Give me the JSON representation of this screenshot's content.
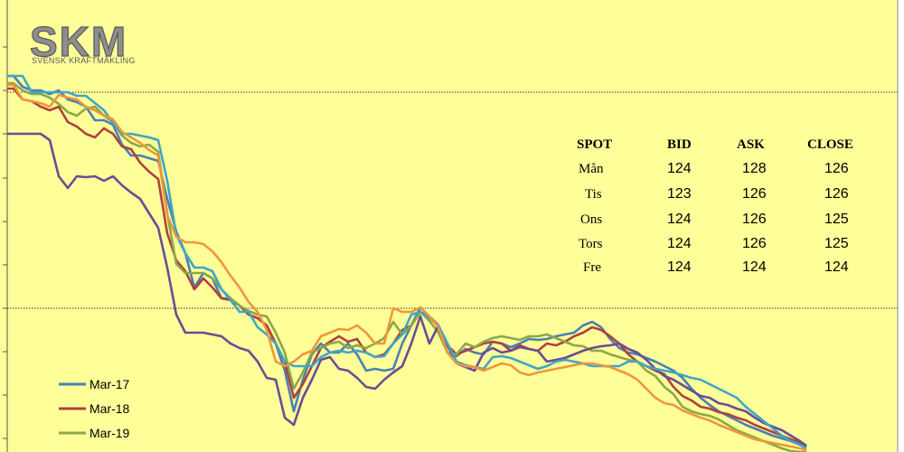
{
  "logo": {
    "name": "SKM",
    "tagline": "SVENSK KRAFTMÄKLING"
  },
  "colors": {
    "background": "#ffff99",
    "Mar-17": "#4a7fb5",
    "Mar-18": "#b0413e",
    "Mar-19": "#8aa84a",
    "series4": "#6b4c96",
    "series5": "#3ea6c6",
    "series6": "#f0963c"
  },
  "spot_table": {
    "headers": [
      "SPOT",
      "BID",
      "ASK",
      "CLOSE"
    ],
    "rows": [
      [
        "Mån",
        "124",
        "128",
        "126"
      ],
      [
        "Tis",
        "123",
        "126",
        "126"
      ],
      [
        "Ons",
        "124",
        "126",
        "125"
      ],
      [
        "Tors",
        "124",
        "126",
        "125"
      ],
      [
        "Fre",
        "124",
        "124",
        "124"
      ]
    ]
  },
  "chart_data": {
    "type": "line",
    "title": "",
    "xlabel": "",
    "ylabel": "",
    "grid": false,
    "legend_position": "bottom-left",
    "reference_lines": [
      102,
      341
    ],
    "x": [
      0,
      7,
      17,
      27,
      37,
      47,
      57,
      67,
      77,
      87,
      97,
      107,
      117,
      127,
      137,
      147,
      157,
      167,
      177,
      187,
      197,
      207,
      217,
      227,
      237,
      247,
      257,
      267,
      277,
      287,
      297,
      307,
      317,
      327,
      337,
      347,
      357,
      367,
      377,
      387,
      397,
      407,
      417,
      427,
      437,
      447,
      457,
      467,
      477,
      487,
      497,
      507,
      517,
      527,
      537,
      547,
      557,
      567,
      577,
      587,
      597,
      607,
      617,
      627,
      637,
      647,
      657,
      667,
      677,
      687,
      697,
      707,
      717,
      727,
      737,
      747,
      757,
      767,
      777,
      787,
      797,
      807,
      817,
      827,
      837,
      847,
      857,
      867,
      877,
      884
    ],
    "series": [
      {
        "name": "Mar-17",
        "color": "#4a7fb5",
        "values": [
          84,
          84,
          96,
          100,
          100,
          104,
          100,
          110,
          113,
          118,
          133,
          133,
          138,
          160,
          172,
          172,
          175,
          178,
          220,
          256,
          280,
          318,
          302,
          308,
          330,
          330,
          338,
          348,
          352,
          360,
          380,
          410,
          455,
          420,
          392,
          380,
          390,
          390,
          380,
          392,
          410,
          408,
          410,
          408,
          380,
          360,
          340,
          350,
          360,
          390,
          394,
          386,
          390,
          392,
          378,
          380,
          384,
          380,
          375,
          376,
          375,
          372,
          370,
          368,
          360,
          356,
          362,
          375,
          385,
          390,
          392,
          396,
          400,
          405,
          410,
          418,
          430,
          440,
          448,
          455,
          460,
          465,
          470,
          474,
          478,
          482,
          485,
          488,
          492,
          496
        ]
      },
      {
        "name": "Mar-18",
        "color": "#b0413e",
        "values": [
          98,
          98,
          110,
          112,
          118,
          122,
          118,
          135,
          140,
          148,
          152,
          142,
          148,
          162,
          165,
          180,
          190,
          198,
          258,
          288,
          300,
          320,
          308,
          318,
          330,
          332,
          338,
          348,
          352,
          360,
          380,
          400,
          440,
          425,
          405,
          385,
          378,
          372,
          378,
          375,
          390,
          395,
          392,
          380,
          365,
          360,
          345,
          350,
          360,
          382,
          392,
          388,
          384,
          380,
          378,
          380,
          388,
          382,
          386,
          388,
          380,
          382,
          378,
          372,
          368,
          362,
          365,
          372,
          380,
          392,
          400,
          405,
          410,
          414,
          428,
          438,
          443,
          450,
          452,
          456,
          458,
          462,
          465,
          470,
          474,
          478,
          482,
          486,
          490,
          494
        ]
      },
      {
        "name": "Mar-19",
        "color": "#8aa84a",
        "values": [
          92,
          92,
          100,
          104,
          104,
          108,
          115,
          124,
          128,
          120,
          118,
          128,
          135,
          150,
          158,
          162,
          160,
          168,
          236,
          292,
          302,
          302,
          302,
          308,
          320,
          330,
          338,
          344,
          348,
          350,
          368,
          390,
          430,
          412,
          390,
          385,
          380,
          378,
          385,
          382,
          385,
          380,
          374,
          356,
          370,
          360,
          345,
          355,
          368,
          390,
          392,
          380,
          384,
          378,
          374,
          372,
          374,
          376,
          372,
          372,
          370,
          374,
          378,
          382,
          383,
          388,
          388,
          392,
          395,
          398,
          400,
          410,
          416,
          428,
          436,
          450,
          455,
          458,
          460,
          464,
          470,
          476,
          480,
          484,
          488,
          492,
          496,
          499,
          500,
          500
        ]
      },
      {
        "name": "",
        "color": "#6b4c96",
        "values": [
          148,
          148,
          148,
          148,
          148,
          155,
          195,
          208,
          195,
          196,
          195,
          200,
          195,
          205,
          213,
          220,
          236,
          252,
          296,
          348,
          368,
          368,
          368,
          370,
          372,
          380,
          385,
          388,
          400,
          418,
          420,
          462,
          470,
          440,
          420,
          398,
          395,
          408,
          410,
          418,
          428,
          430,
          420,
          412,
          405,
          380,
          350,
          380,
          360,
          382,
          402,
          406,
          410,
          390,
          385,
          390,
          388,
          384,
          386,
          388,
          400,
          398,
          396,
          392,
          388,
          385,
          383,
          382,
          380,
          386,
          390,
          398,
          408,
          416,
          420,
          426,
          432,
          438,
          440,
          446,
          448,
          452,
          455,
          462,
          468,
          472,
          476,
          482,
          488,
          493
        ]
      },
      {
        "name": "",
        "color": "#3ea6c6",
        "values": [
          84,
          84,
          84,
          102,
          102,
          102,
          102,
          102,
          106,
          106,
          114,
          122,
          136,
          148,
          148,
          150,
          152,
          155,
          200,
          260,
          280,
          296,
          296,
          300,
          320,
          332,
          345,
          345,
          362,
          370,
          380,
          400,
          405,
          405,
          405,
          395,
          390,
          388,
          390,
          388,
          390,
          395,
          394,
          380,
          370,
          348,
          345,
          352,
          360,
          380,
          400,
          404,
          406,
          408,
          395,
          394,
          396,
          400,
          404,
          408,
          405,
          400,
          398,
          400,
          402,
          405,
          405,
          405,
          405,
          400,
          400,
          405,
          408,
          410,
          412,
          415,
          418,
          420,
          425,
          430,
          435,
          440,
          450,
          458,
          466,
          474,
          482,
          488,
          492,
          496
        ]
      },
      {
        "name": "",
        "color": "#f0963c",
        "values": [
          94,
          94,
          110,
          112,
          114,
          118,
          105,
          108,
          110,
          118,
          122,
          128,
          132,
          146,
          152,
          158,
          166,
          172,
          238,
          262,
          268,
          268,
          270,
          278,
          290,
          305,
          318,
          334,
          345,
          365,
          400,
          405,
          400,
          392,
          388,
          372,
          368,
          364,
          365,
          360,
          368,
          380,
          380,
          341,
          345,
          345,
          340,
          350,
          362,
          390,
          402,
          405,
          406,
          410,
          406,
          402,
          404,
          412,
          415,
          412,
          410,
          408,
          406,
          404,
          402,
          402,
          404,
          406,
          410,
          414,
          420,
          430,
          440,
          446,
          448,
          454,
          458,
          462,
          465,
          470,
          474,
          478,
          482,
          486,
          488,
          490,
          492,
          494,
          496,
          498
        ]
      }
    ]
  },
  "legend": [
    {
      "label": "Mar-17",
      "color": "#4a7fb5"
    },
    {
      "label": "Mar-18",
      "color": "#b0413e"
    },
    {
      "label": "Mar-19",
      "color": "#8aa84a"
    }
  ]
}
